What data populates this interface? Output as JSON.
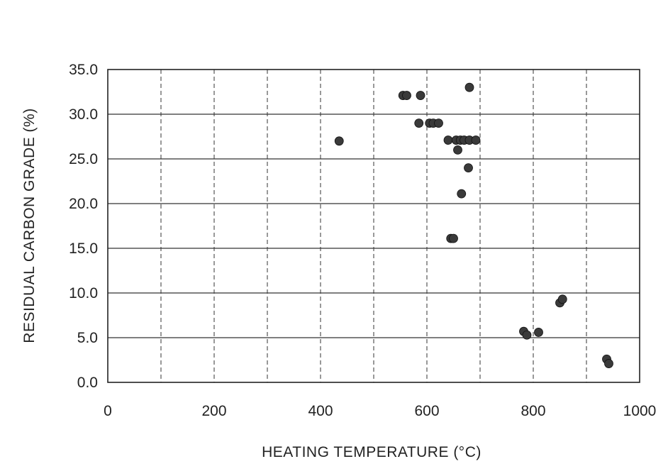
{
  "chart_data": {
    "type": "scatter",
    "title": "",
    "xlabel": "HEATING TEMPERATURE (°C)",
    "ylabel": "RESIDUAL CARBON GRADE (%)",
    "xlim": [
      0,
      1000
    ],
    "ylim": [
      0,
      35
    ],
    "x_ticks": [
      0,
      200,
      400,
      600,
      800,
      1000
    ],
    "x_tick_labels": [
      "0",
      "200",
      "400",
      "600",
      "800",
      "1000"
    ],
    "y_ticks": [
      0,
      5,
      10,
      15,
      20,
      25,
      30,
      35
    ],
    "y_tick_labels": [
      "0.0",
      "5.0",
      "10.0",
      "15.0",
      "20.0",
      "25.0",
      "30.0",
      "35.0"
    ],
    "grid": true,
    "grid_style": "dashed vertical lines at every 100, solid horizontal lines at every 5",
    "marker_color": "#3a3a3a",
    "series": [
      {
        "points": [
          [
            435,
            27.0
          ],
          [
            555,
            32.1
          ],
          [
            562,
            32.1
          ],
          [
            588,
            32.1
          ],
          [
            680,
            33.0
          ],
          [
            585,
            29.0
          ],
          [
            605,
            29.0
          ],
          [
            612,
            29.0
          ],
          [
            622,
            29.0
          ],
          [
            640,
            27.1
          ],
          [
            655,
            27.1
          ],
          [
            663,
            27.1
          ],
          [
            670,
            27.1
          ],
          [
            680,
            27.1
          ],
          [
            692,
            27.1
          ],
          [
            658,
            26.0
          ],
          [
            678,
            24.0
          ],
          [
            665,
            21.1
          ],
          [
            645,
            16.1
          ],
          [
            650,
            16.1
          ],
          [
            782,
            5.7
          ],
          [
            788,
            5.3
          ],
          [
            810,
            5.6
          ],
          [
            850,
            8.9
          ],
          [
            855,
            9.3
          ],
          [
            938,
            2.6
          ],
          [
            942,
            2.1
          ]
        ]
      }
    ]
  }
}
